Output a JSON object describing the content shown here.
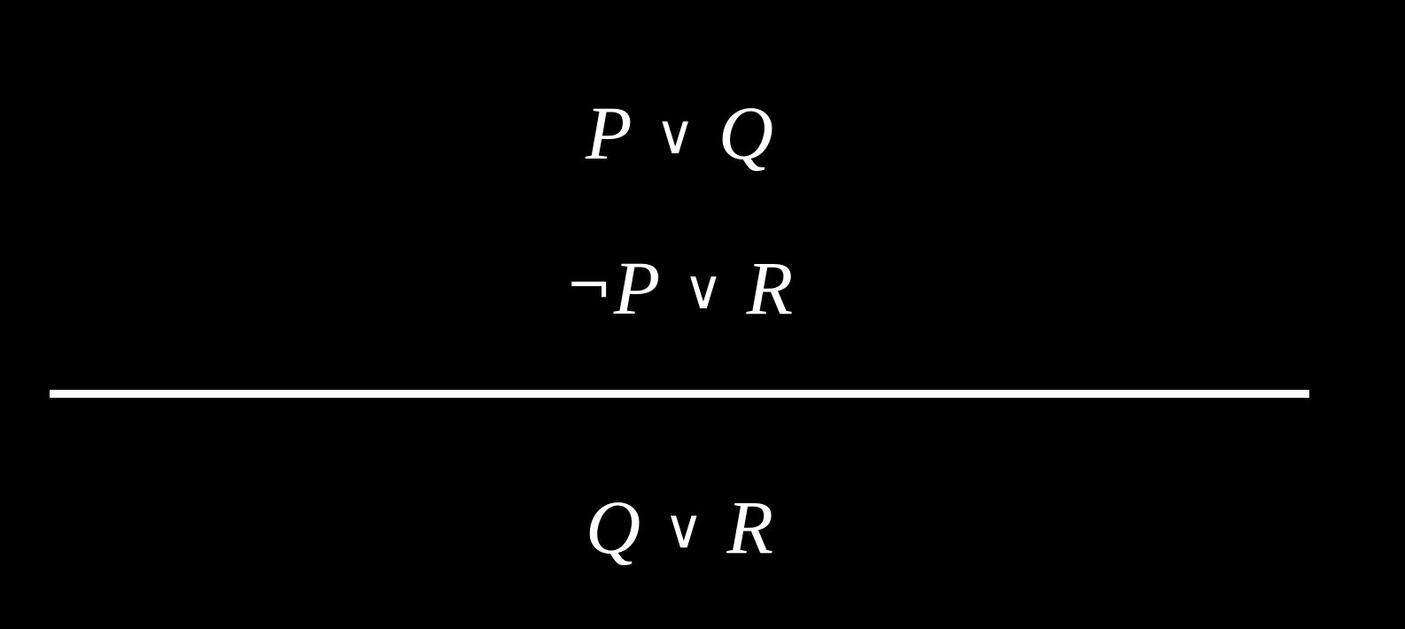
{
  "colors": {
    "background": "#000000",
    "foreground": "#ffffff"
  },
  "premises": [
    {
      "left": "P",
      "operator": "∨",
      "right": "Q"
    },
    {
      "negation": "¬",
      "left": "P",
      "operator": "∨",
      "right": "R"
    }
  ],
  "conclusion": {
    "left": "Q",
    "operator": "∨",
    "right": "R"
  }
}
